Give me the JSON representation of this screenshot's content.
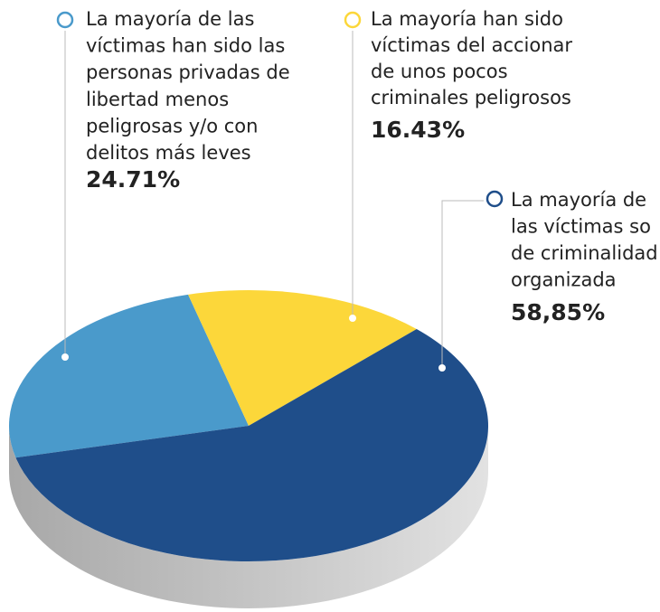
{
  "chart_data": {
    "type": "pie",
    "categories": [
      [
        "La mayoría de las",
        "víctimas han sido las",
        "personas privadas de",
        "libertad menos",
        "peligrosas y/o con",
        "delitos más leves"
      ],
      [
        "La mayoría han sido",
        "víctimas del accionar",
        "de unos pocos",
        "criminales peligrosos"
      ],
      [
        "La mayoría de",
        "las víctimas so",
        "de criminalidad",
        "organizada"
      ]
    ],
    "values": [
      24.71,
      16.43,
      58.85
    ],
    "value_labels": [
      "24.71%",
      "16.43%",
      "58,85%"
    ],
    "colors": [
      "#4a9acb",
      "#fcd73a",
      "#1f4e8a"
    ]
  }
}
